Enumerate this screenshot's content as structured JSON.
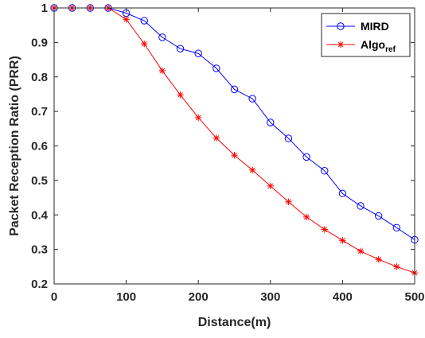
{
  "chart_data": {
    "type": "line",
    "xlabel": "Distance(m)",
    "ylabel": "Packet Reception Ratio (PRR)",
    "xlim": [
      0,
      500
    ],
    "ylim": [
      0.2,
      1
    ],
    "xticks": [
      0,
      100,
      200,
      300,
      400,
      500
    ],
    "yticks": [
      0.2,
      0.3,
      0.4,
      0.5,
      0.6,
      0.7,
      0.8,
      0.9,
      1
    ],
    "ytick_labels": [
      "0.2",
      "0.3",
      "0.4",
      "0.5",
      "0.6",
      "0.7",
      "0.8",
      "0.9",
      "1"
    ],
    "grid": false,
    "legend_position": "top-right",
    "x": [
      0,
      25,
      50,
      75,
      100,
      125,
      150,
      175,
      200,
      225,
      250,
      275,
      300,
      325,
      350,
      375,
      400,
      425,
      450,
      475,
      500
    ],
    "series": [
      {
        "name": "MIRD",
        "marker": "circle",
        "color": "#0000ff",
        "values": [
          1.0,
          1.0,
          1.0,
          1.0,
          0.985,
          0.963,
          0.915,
          0.882,
          0.868,
          0.825,
          0.764,
          0.737,
          0.668,
          0.622,
          0.568,
          0.528,
          0.462,
          0.426,
          0.397,
          0.363,
          0.328
        ]
      },
      {
        "name_main": "Algo",
        "name_sub": "ref",
        "marker": "asterisk",
        "color": "#ff0000",
        "values": [
          1.0,
          1.0,
          1.0,
          1.0,
          0.967,
          0.896,
          0.818,
          0.748,
          0.682,
          0.623,
          0.573,
          0.53,
          0.484,
          0.438,
          0.394,
          0.358,
          0.326,
          0.295,
          0.271,
          0.25,
          0.232
        ]
      }
    ]
  }
}
